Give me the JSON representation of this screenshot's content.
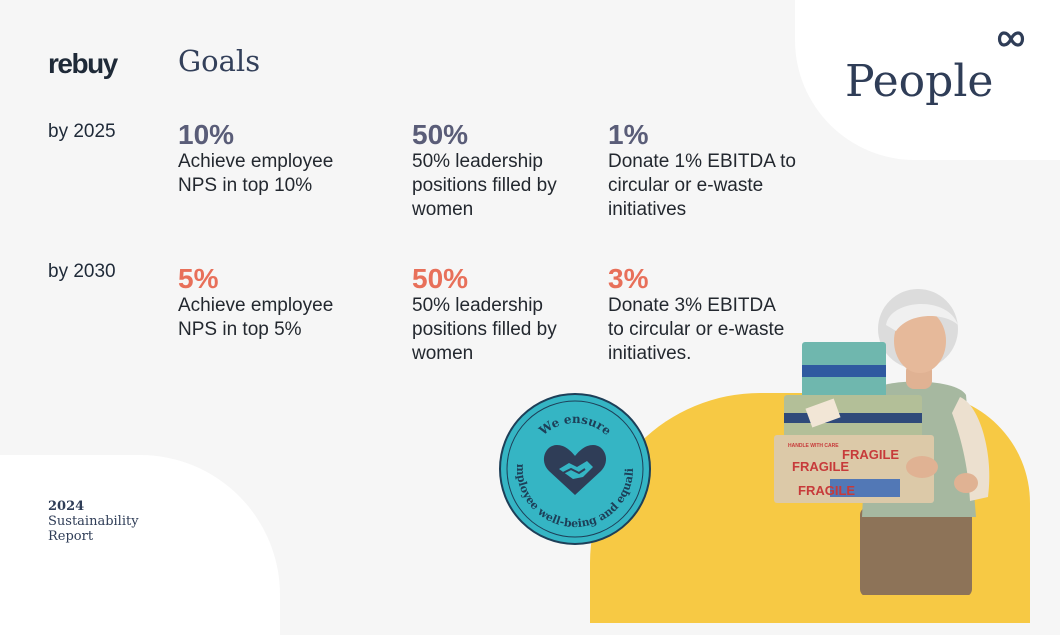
{
  "brand": {
    "logo_text": "rebuy"
  },
  "header": {
    "title": "Goals",
    "section": "People"
  },
  "icons": {
    "brand_mark": "infinity-icon"
  },
  "colors": {
    "accent_yellow": "#f7c944",
    "badge_teal": "#35b5c4",
    "dark_navy": "#2f3d57",
    "coral": "#e8705a",
    "slate": "#5a5d78"
  },
  "goals": [
    {
      "year": "by 2025",
      "items": [
        {
          "value": "10%",
          "text": "Achieve employee NPS in top 10%"
        },
        {
          "value": "50%",
          "text": "50% leadership positions filled by women"
        },
        {
          "value": "1%",
          "text": "Donate 1% EBITDA to circular or e-waste initiatives"
        }
      ]
    },
    {
      "year": "by 2030",
      "items": [
        {
          "value": "5%",
          "text": "Achieve employee NPS in top 5%"
        },
        {
          "value": "50%",
          "text": "50% leadership positions filled by women"
        },
        {
          "value": "3%",
          "text": "Donate 3% EBITDA to circular or e-waste initiatives."
        }
      ]
    }
  ],
  "badge": {
    "top_text": "We ensure",
    "bottom_text": "employee well-being and equality"
  },
  "photo": {
    "box_label": "FRAGILE",
    "box_label_2": "HANDLE WITH CARE"
  },
  "footer": {
    "year": "2024",
    "report": "Sustainability Report"
  }
}
